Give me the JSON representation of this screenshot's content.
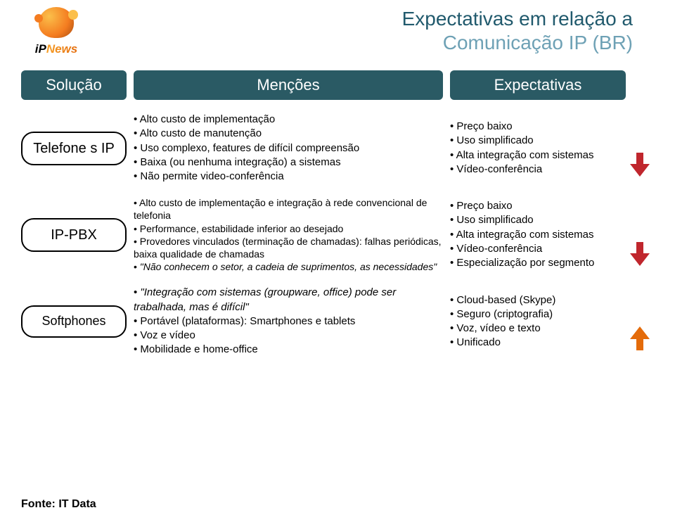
{
  "logo": {
    "brand_ip": "iP",
    "brand_news": "News"
  },
  "title": {
    "line1": "Expectativas  em relação a",
    "line2": "Comunicação IP (BR)",
    "line1_color": "#215a6d",
    "line2_color": "#6ea1b5",
    "fontsize": 28
  },
  "headers": {
    "solucao": "Solução",
    "mencoes": "Menções",
    "expectativas": "Expectativas",
    "bg_color": "#2a5a64",
    "text_color": "#ffffff",
    "fontsize": 22
  },
  "col_widths": {
    "solucao": 150,
    "mencoes": 460,
    "expectativas": 250,
    "arrow": 40
  },
  "rows": [
    {
      "solution": "Telefone s IP",
      "mentions": [
        "Alto custo de implementação",
        "Alto custo de manutenção",
        "Uso complexo, features de difícil compreensão",
        "Baixa (ou nenhuma integração) a sistemas",
        "Não permite video-conferência"
      ],
      "expectations": [
        "Preço baixo",
        "Uso simplificado",
        "Alta integração com sistemas",
        "Vídeo-conferência"
      ],
      "arrow": {
        "direction": "down",
        "color": "#c0262d"
      },
      "mentions_fontsize": 15,
      "exp_fontsize": 15
    },
    {
      "solution": "IP-PBX",
      "mentions": [
        "Alto custo de implementação e integração à rede convencional de telefonia",
        "Performance, estabilidade inferior ao desejado",
        "Provedores vinculados (terminação de chamadas): falhas periódicas, baixa qualidade de chamadas",
        "\"Não conhecem o setor, a cadeia de suprimentos, as necessidades\""
      ],
      "mentions_italic_last": true,
      "expectations": [
        "Preço baixo",
        "Uso simplificado",
        "Alta integração com sistemas",
        "Vídeo-conferência",
        "Especialização por segmento"
      ],
      "arrow": {
        "direction": "down",
        "color": "#c0262d"
      },
      "mentions_fontsize": 14,
      "exp_fontsize": 15
    },
    {
      "solution": "Softphones",
      "mentions": [
        "\"Integração com sistemas (groupware, office) pode ser trabalhada, mas é difícil\"",
        "Portável (plataformas): Smartphones e tablets",
        "Voz e vídeo",
        "Mobilidade e home-office"
      ],
      "mentions_italic_first": true,
      "expectations": [
        "Cloud-based (Skype)",
        "Seguro (criptografia)",
        "Voz, vídeo e texto",
        "Unificado"
      ],
      "arrow": {
        "direction": "up",
        "color": "#e46b0a"
      },
      "mentions_fontsize": 15,
      "exp_fontsize": 15
    }
  ],
  "footer": {
    "source": "Fonte: IT Data",
    "fontsize": 16
  },
  "pill_border_color": "#000000",
  "pill_radius": 18
}
